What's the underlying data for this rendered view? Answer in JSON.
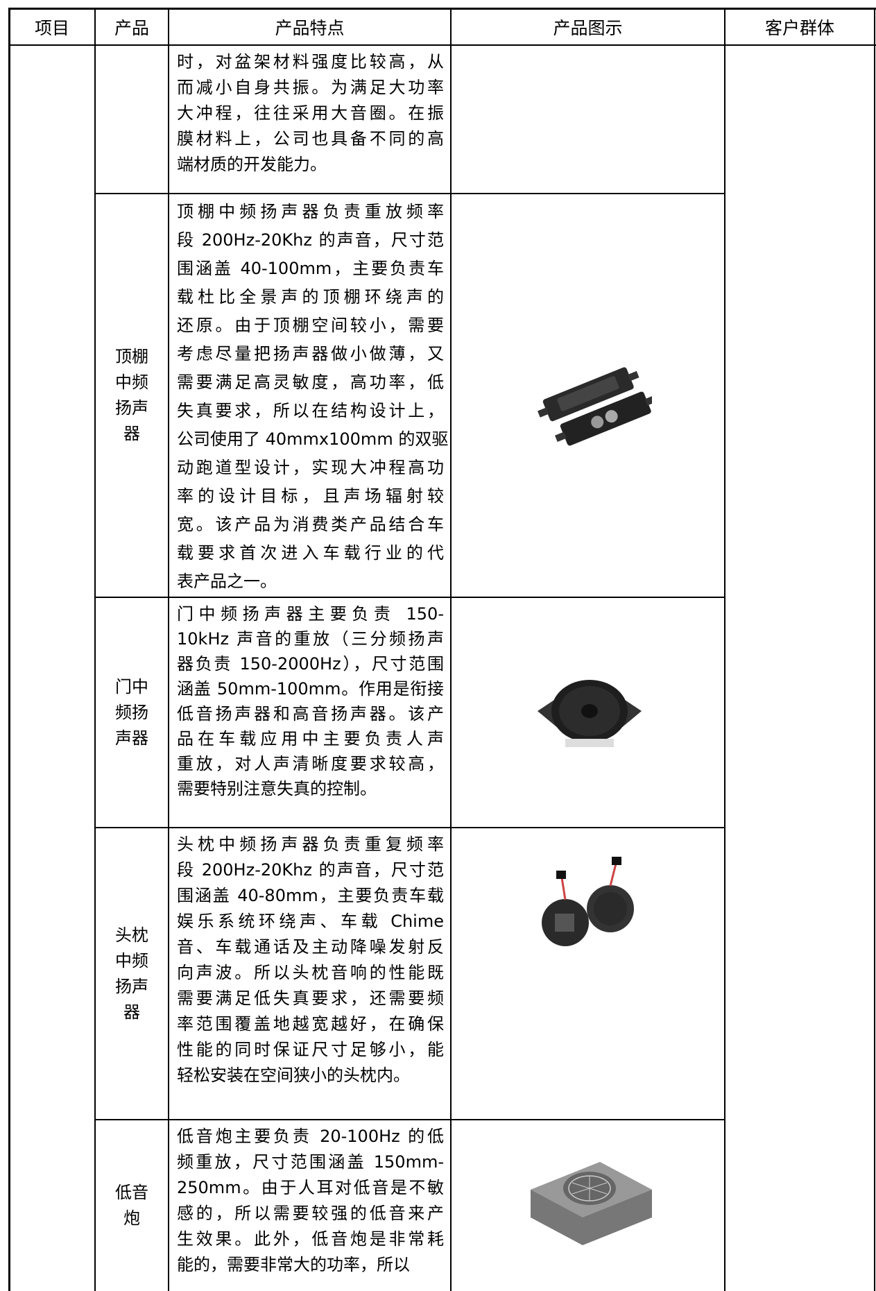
{
  "table": {
    "header": [
      "项目",
      "产品",
      "产品特点",
      "产品图示",
      "客户群体"
    ],
    "rows": [
      {
        "product": [],
        "features": [
          "时，对盆架材料强度比较高，从",
          "而减小自身共振。为满足大功率",
          "大冲程，往往采用大音圈。在振",
          "膜材料上，公司也具备不同的高",
          "端材质的开发能力。"
        ]
      },
      {
        "product": [
          "顶棚",
          "中频",
          "扬声",
          "器"
        ],
        "features": [
          "顶棚中频扬声器负责重放频率",
          "段 200Hz-20Khz 的声音，尺寸范",
          "围涵盖 40-100mm，主要负责车",
          "载杜比全景声的顶棚环绕声的",
          "还原。由于顶棚空间较小，需要",
          "考虑尽量把扬声器做小做薄，又",
          "需要满足高灵敏度，高功率，低",
          "失真要求，所以在结构设计上，",
          "公司使用了 40mmx100mm 的双驱",
          "动跑道型设计，实现大冲程高功",
          "率的设计目标，且声场辐射较",
          "宽。该产品为消费类产品结合车",
          "载要求首次进入车载行业的代",
          "表产品之一。"
        ]
      },
      {
        "product": [
          "门中",
          "频扬",
          "声器"
        ],
        "features": [
          "门中频扬声器主要负责 150-",
          "10kHz 声音的重放（三分频扬声",
          "器负责 150-2000Hz），尺寸范围",
          "涵盖 50mm-100mm。作用是衔接",
          "低音扬声器和高音扬声器。该产",
          "品在车载应用中主要负责人声",
          "重放，对人声清晰度要求较高，",
          "需要特别注意失真的控制。"
        ]
      },
      {
        "product": [
          "头枕",
          "中频",
          "扬声",
          "器"
        ],
        "features": [
          "头枕中频扬声器负责重复频率",
          "段 200Hz-20Khz 的声音，尺寸范",
          "围涵盖 40-80mm，主要负责车载",
          "娱乐系统环绕声、车载 Chime",
          "音、车载通话及主动降噪发射反",
          "向声波。所以头枕音响的性能既",
          "需要满足低失真要求，还需要频",
          "率范围覆盖地越宽越好，在确保",
          "性能的同时保证尺寸足够小，能",
          "轻松安装在空间狭小的头枕内。"
        ]
      },
      {
        "product": [
          "低音",
          "炮"
        ],
        "features": [
          "低音炮主要负责 20-100Hz 的低",
          "频重放，尺寸范围涵盖 150mm-",
          "250mm。由于人耳对低音是不敏",
          "感的，所以需要较强的低音来产",
          "生效果。此外，低音炮是非常耗",
          "能的，需要非常大的功率，所以"
        ]
      }
    ]
  }
}
